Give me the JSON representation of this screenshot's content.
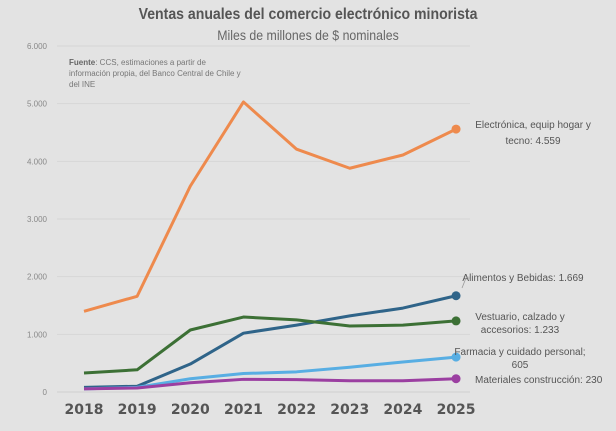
{
  "chart_data": {
    "type": "line",
    "title": "Ventas anuales del comercio electrónico minorista",
    "subtitle": "Miles de millones de $ nominales",
    "source_label": "Fuente",
    "source_text": ": CCS, estimaciones a partir de información propia, del Banco Central de Chile y del INE",
    "x": [
      "2018",
      "2019",
      "2020",
      "2021",
      "2022",
      "2023",
      "2024",
      "2025"
    ],
    "ylim": [
      0,
      6000
    ],
    "yticks": [
      "0",
      "1.000",
      "2.000",
      "3.000",
      "4.000",
      "5.000",
      "6.000"
    ],
    "grid": true,
    "series": [
      {
        "name": "Electrónica, equip hogar y tecno",
        "label_lines": [
          "Electrónica, equip hogar y",
          "tecno: 4.559"
        ],
        "color": "#ee8a4d",
        "values": [
          1400,
          1660,
          3570,
          5030,
          4210,
          3880,
          4110,
          4559
        ]
      },
      {
        "name": "Alimentos y Bebidas",
        "label_lines": [
          "Alimentos y Bebidas: 1.669"
        ],
        "color": "#2f6489",
        "values": [
          80,
          100,
          485,
          1020,
          1160,
          1320,
          1455,
          1669
        ]
      },
      {
        "name": "Vestuario, calzado y accesorios",
        "label_lines": [
          "Vestuario, calzado y",
          "accesorios: 1.233"
        ],
        "color": "#3c7035",
        "values": [
          330,
          385,
          1075,
          1300,
          1250,
          1145,
          1160,
          1233
        ]
      },
      {
        "name": "Farmacia y cuidado personal",
        "label_lines": [
          "Farmacia y cuidado personal;",
          "605"
        ],
        "color": "#58aee3",
        "values": [
          55,
          80,
          230,
          320,
          350,
          430,
          520,
          605
        ]
      },
      {
        "name": "Materiales construcción",
        "label_lines": [
          "Materiales construcción: 230"
        ],
        "color": "#9b3fa1",
        "values": [
          55,
          70,
          160,
          220,
          215,
          195,
          195,
          230
        ]
      }
    ]
  }
}
